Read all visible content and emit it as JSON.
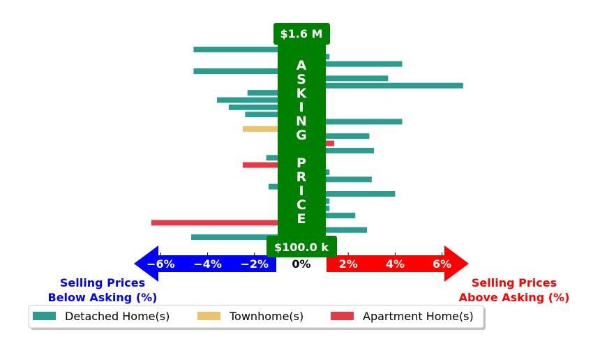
{
  "chart_data": {
    "type": "bar",
    "orientation": "horizontal",
    "x_range": [
      -6.8,
      6.8
    ],
    "x_ticks": [
      -6,
      -4,
      -2,
      0,
      2,
      4,
      6
    ],
    "x_tick_labels": [
      "−6%",
      "−4%",
      "−2%",
      "0%",
      "2%",
      "4%",
      "6%"
    ],
    "band_top_label": "$1.6 M",
    "band_bottom_label": "$100.0 k",
    "band_text": "ASKING PRICE",
    "left_caption": "Selling Prices\nBelow Asking (%)",
    "right_caption": "Selling Prices\nAbove Asking (%)",
    "legend": [
      {
        "name": "Detached Home(s)",
        "color": "#2a9d8f"
      },
      {
        "name": "Townhome(s)",
        "color": "#e9c46a"
      },
      {
        "name": "Apartment Home(s)",
        "color": "#e63946"
      }
    ],
    "bars": [
      {
        "type": "Detached Home(s)",
        "value": -4.6
      },
      {
        "type": "Detached Home(s)",
        "value": 1.2
      },
      {
        "type": "Detached Home(s)",
        "value": 4.3
      },
      {
        "type": "Detached Home(s)",
        "value": -4.6
      },
      {
        "type": "Detached Home(s)",
        "value": 3.7
      },
      {
        "type": "Detached Home(s)",
        "value": 6.9
      },
      {
        "type": "Detached Home(s)",
        "value": -2.3
      },
      {
        "type": "Detached Home(s)",
        "value": -3.6
      },
      {
        "type": "Detached Home(s)",
        "value": -3.1
      },
      {
        "type": "Detached Home(s)",
        "value": -2.4
      },
      {
        "type": "Detached Home(s)",
        "value": 4.3
      },
      {
        "type": "Townhome(s)",
        "value": -2.5
      },
      {
        "type": "Detached Home(s)",
        "value": 2.9
      },
      {
        "type": "Apartment Home(s)",
        "value": 1.4
      },
      {
        "type": "Detached Home(s)",
        "value": 3.1
      },
      {
        "type": "Detached Home(s)",
        "value": -1.5
      },
      {
        "type": "Apartment Home(s)",
        "value": -2.5
      },
      {
        "type": "Detached Home(s)",
        "value": 1.2
      },
      {
        "type": "Detached Home(s)",
        "value": 3.0
      },
      {
        "type": "Detached Home(s)",
        "value": -1.4
      },
      {
        "type": "Detached Home(s)",
        "value": 4.0
      },
      {
        "type": "Detached Home(s)",
        "value": 1.2
      },
      {
        "type": "Detached Home(s)",
        "value": 1.2
      },
      {
        "type": "Detached Home(s)",
        "value": 2.3
      },
      {
        "type": "Apartment Home(s)",
        "value": -6.4
      },
      {
        "type": "Detached Home(s)",
        "value": 2.8
      },
      {
        "type": "Detached Home(s)",
        "value": -4.7
      }
    ],
    "colors": {
      "band": "#008000",
      "left_arrow": "#0000ff",
      "right_arrow": "#ff0000",
      "left_caption": "#0000ff",
      "right_caption": "#ff0000"
    }
  }
}
